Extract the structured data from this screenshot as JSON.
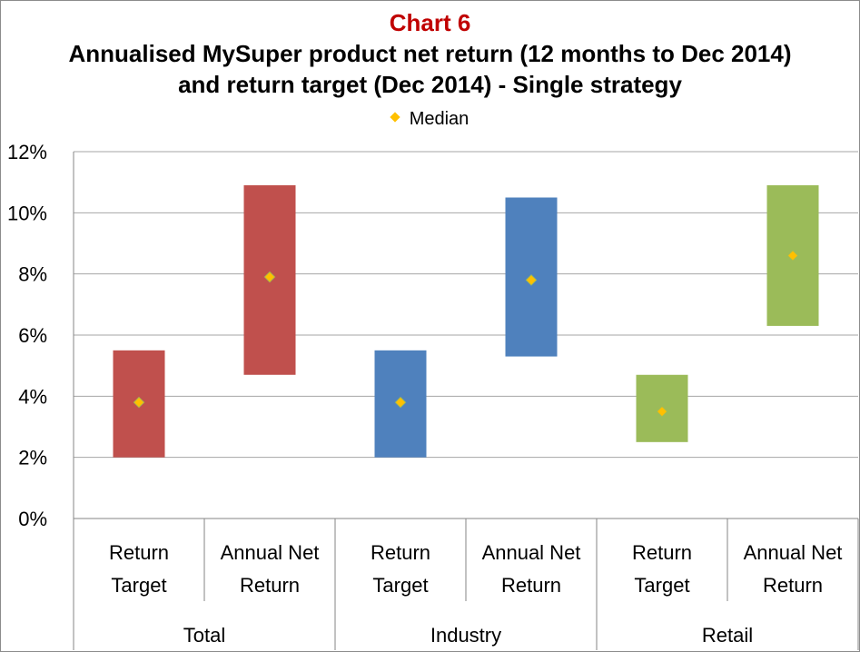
{
  "chart_data": {
    "type": "floating-bar",
    "chart_number": "Chart 6",
    "title_lines": [
      "Annualised MySuper product net return (12 months to Dec 2014)",
      "and return target (Dec 2014) - Single strategy"
    ],
    "legend": {
      "label": "Median",
      "position": "top-center"
    },
    "ylim": [
      0,
      12
    ],
    "yticks": [
      "0%",
      "2%",
      "4%",
      "6%",
      "8%",
      "10%",
      "12%"
    ],
    "grid": true,
    "groups": [
      "Total",
      "Industry",
      "Retail"
    ],
    "category_labels": [
      [
        "Return",
        "Target"
      ],
      [
        "Annual Net",
        "Return"
      ]
    ],
    "bars": [
      {
        "group": "Total",
        "category": "Return Target",
        "low": 2.0,
        "high": 5.5,
        "median": 3.8
      },
      {
        "group": "Total",
        "category": "Annual Net Return",
        "low": 4.7,
        "high": 10.9,
        "median": 7.9
      },
      {
        "group": "Industry",
        "category": "Return Target",
        "low": 2.0,
        "high": 5.5,
        "median": 3.8
      },
      {
        "group": "Industry",
        "category": "Annual Net Return",
        "low": 5.3,
        "high": 10.5,
        "median": 7.8
      },
      {
        "group": "Retail",
        "category": "Return Target",
        "low": 2.5,
        "high": 4.7,
        "median": 3.5
      },
      {
        "group": "Retail",
        "category": "Annual Net Return",
        "low": 6.3,
        "high": 10.9,
        "median": 8.6
      }
    ],
    "colors": {
      "Total": "#c0504d",
      "Industry": "#4f81bd",
      "Retail": "#9bbb59",
      "median_marker": "#ffc000",
      "chart_number": "#c00000",
      "grid": "#a6a6a6"
    }
  }
}
